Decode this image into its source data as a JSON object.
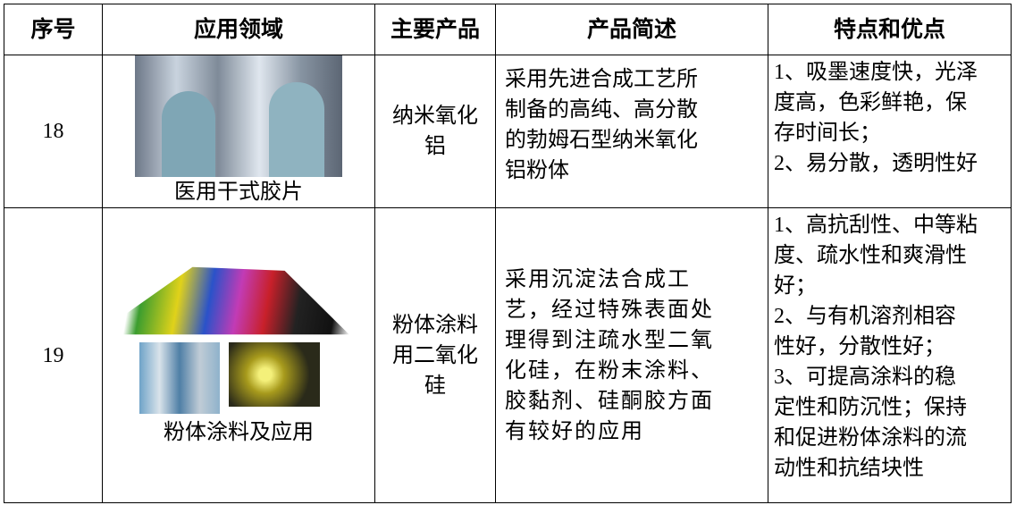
{
  "table": {
    "header": [
      "序号",
      "应用领域",
      "主要产品",
      "产品简述",
      "特点和优点"
    ],
    "rows": [
      {
        "number": "18",
        "caption": "医用干式胶片",
        "product": [
          "纳米氧化",
          "铝"
        ],
        "description": [
          "采用先进合成工艺所",
          "制备的高纯、高分散",
          "的勃姆石型纳米氧化",
          "铝粉体"
        ],
        "features": [
          "1、吸墨速度快，光泽",
          "度高，色彩鲜艳，保",
          "存时间长；",
          "2、易分散，透明性好"
        ]
      },
      {
        "number": "19",
        "caption": "粉体涂料及应用",
        "product": [
          "粉体涂料",
          "用二氧化",
          "硅"
        ],
        "description": [
          "采用沉淀法合成工",
          "艺，经过特殊表面处",
          "理得到注疏水型二氧",
          "化硅，在粉末涂料、",
          "胶黏剂、硅酮胶方面",
          "有较好的应用"
        ],
        "features": [
          "1、高抗刮性、中等粘",
          "度、疏水性和爽滑性",
          "好；",
          "2、与有机溶剂相容",
          "性好，分散性好；",
          "3、可提高涂料的稳",
          "定性和防沉性；保持",
          "和促进粉体涂料的流",
          "动性和抗结块性"
        ]
      }
    ]
  }
}
